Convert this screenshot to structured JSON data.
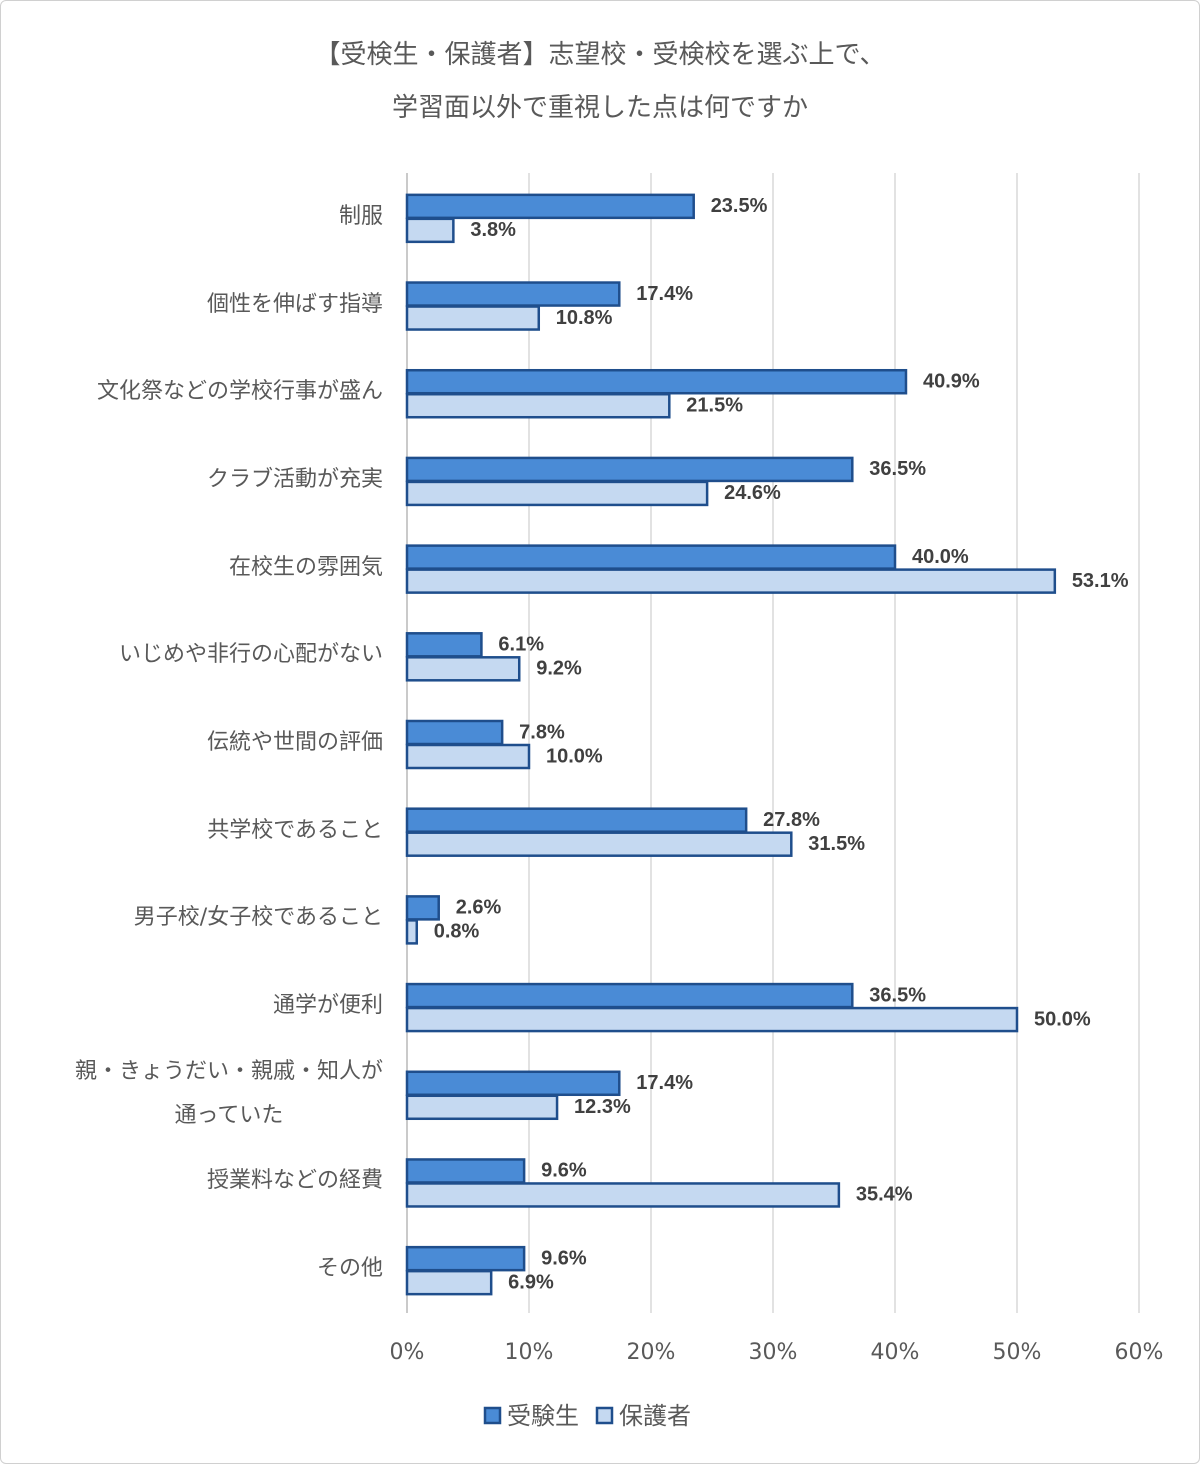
{
  "chart_data": {
    "type": "bar",
    "orientation": "horizontal",
    "title": "【受検生・保護者】志望校・受検校を選ぶ上で、\n学習面以外で重視した点は何ですか",
    "categories": [
      "制服",
      "個性を伸ばす指導",
      "文化祭などの学校行事が盛ん",
      "クラブ活動が充実",
      "在校生の雰囲気",
      "いじめや非行の心配がない",
      "伝統や世間の評価",
      "共学校であること",
      "男子校/女子校であること",
      "通学が便利",
      "親・きょうだい・親戚・知人が\n通っていた",
      "授業料などの経費",
      "その他"
    ],
    "series": [
      {
        "name": "受験生",
        "color": "#4a8bd6",
        "values": [
          23.5,
          17.4,
          40.9,
          36.5,
          40.0,
          6.1,
          7.8,
          27.8,
          2.6,
          36.5,
          17.4,
          9.6,
          9.6
        ],
        "value_labels": [
          "23.5%",
          "17.4%",
          "40.9%",
          "36.5%",
          "40.0%",
          "6.1%",
          "7.8%",
          "27.8%",
          "2.6%",
          "36.5%",
          "17.4%",
          "9.6%",
          "9.6%"
        ]
      },
      {
        "name": "保護者",
        "color": "#c5d9f1",
        "values": [
          3.8,
          10.8,
          21.5,
          24.6,
          53.1,
          9.2,
          10.0,
          31.5,
          0.8,
          50.0,
          12.3,
          35.4,
          6.9
        ],
        "value_labels": [
          "3.8%",
          "10.8%",
          "21.5%",
          "24.6%",
          "53.1%",
          "9.2%",
          "10.0%",
          "31.5%",
          "0.8%",
          "50.0%",
          "12.3%",
          "35.4%",
          "6.9%"
        ]
      }
    ],
    "xlim": [
      0,
      60
    ],
    "xticks": [
      {
        "value": 0,
        "label": "0%"
      },
      {
        "value": 10,
        "label": "10%"
      },
      {
        "value": 20,
        "label": "20%"
      },
      {
        "value": 30,
        "label": "30%"
      },
      {
        "value": 40,
        "label": "40%"
      },
      {
        "value": 50,
        "label": "50%"
      },
      {
        "value": 60,
        "label": "60%"
      }
    ],
    "grid": true,
    "legend": "bottom",
    "bar_stroke": "#1f4e8c"
  }
}
